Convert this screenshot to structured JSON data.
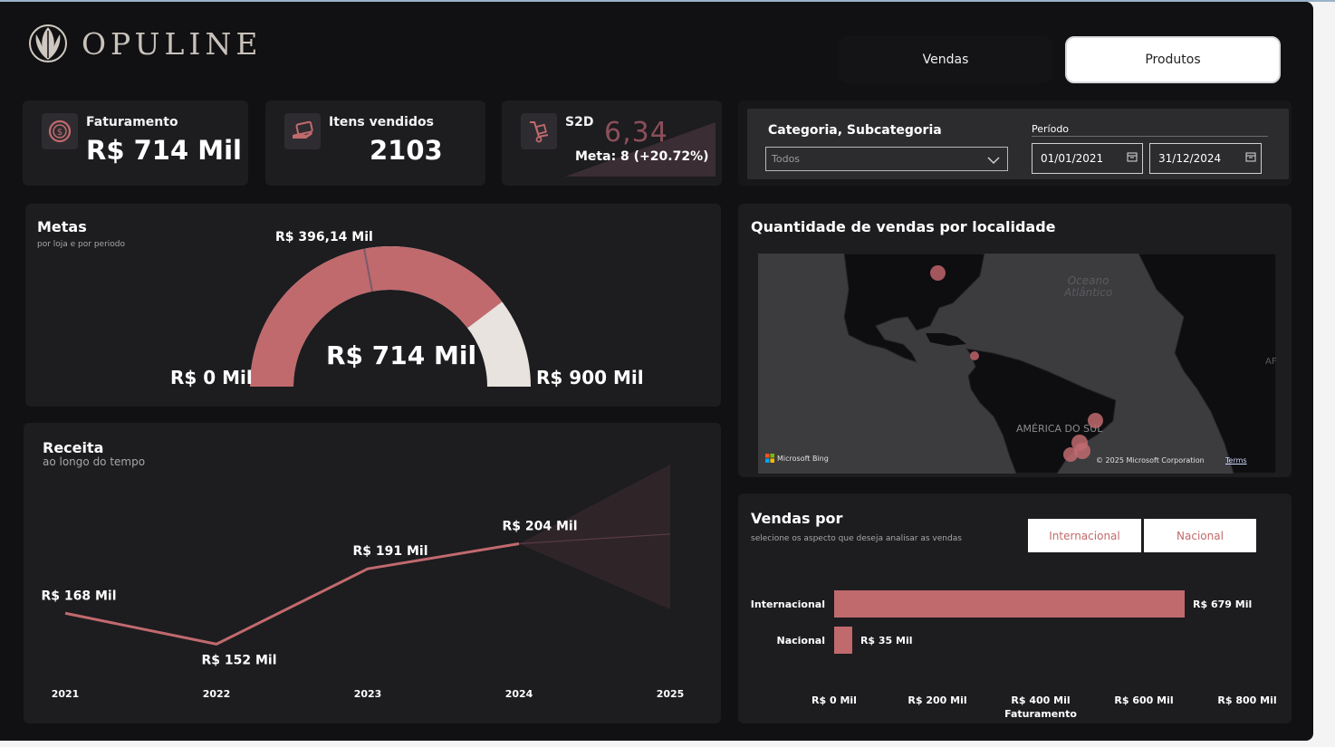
{
  "brand": {
    "name": "OPULINE"
  },
  "nav": {
    "vendas": "Vendas",
    "produtos": "Produtos"
  },
  "kpis": {
    "faturamento": {
      "label": "Faturamento",
      "value": "R$ 714 Mil",
      "icon": "dollar-coin-icon"
    },
    "itens": {
      "label": "Itens vendidos",
      "value": "2103",
      "icon": "credit-card-hand-icon"
    },
    "s2d": {
      "label": "S2D",
      "value": "6,34",
      "meta": "Meta: 8 (+20.72%)",
      "icon": "hand-truck-icon"
    }
  },
  "filters": {
    "category_label": "Categoria, Subcategoria",
    "category_value": "Todos",
    "period_label": "Período",
    "date_start": "01/01/2021",
    "date_end": "31/12/2024"
  },
  "metas": {
    "title": "Metas",
    "subtitle": "por loja e por periodo",
    "center_value": "R$ 714 Mil",
    "min_label": "R$ 0 Mil",
    "max_label": "R$ 900 Mil",
    "target_label": "R$ 396,14 Mil",
    "value": 714,
    "min": 0,
    "max": 900,
    "target": 396.14
  },
  "map": {
    "title": "Quantidade de vendas por localidade",
    "ocean_label_1": "Oceano",
    "ocean_label_2": "Atlântico",
    "continent_label": "AMÉRICA DO SUL",
    "edge_label": "AF",
    "bing": "Microsoft Bing",
    "copyright": "© 2025 Microsoft Corporation",
    "terms": "Terms"
  },
  "receita": {
    "title": "Receita",
    "subtitle": "ao longo do tempo"
  },
  "vendas_por": {
    "title": "Vendas por",
    "subtitle": "selecione os aspecto que deseja analisar as vendas",
    "seg_internacional": "Internacional",
    "seg_nacional": "Nacional",
    "xaxis_title": "Faturamento"
  },
  "colors": {
    "accent": "#c06a6e",
    "bg": "#111113",
    "card": "#1d1c1f",
    "track": "#e9e3df"
  },
  "chart_data": [
    {
      "type": "line",
      "title": "Receita",
      "subtitle": "ao longo do tempo",
      "x": [
        "2021",
        "2022",
        "2023",
        "2024",
        "2025"
      ],
      "series": [
        {
          "values": [
            168,
            152,
            191,
            204,
            null
          ]
        }
      ],
      "data_labels": [
        "R$ 168 Mil",
        "R$ 152 Mil",
        "R$ 191 Mil",
        "R$ 204 Mil"
      ],
      "forecast": {
        "x": "2025",
        "value": 209,
        "low": 170,
        "high": 245
      }
    },
    {
      "type": "bar",
      "orientation": "horizontal",
      "title": "Vendas por",
      "categories": [
        "Internacional",
        "Nacional"
      ],
      "values": [
        679,
        35
      ],
      "data_labels": [
        "R$ 679 Mil",
        "R$ 35 Mil"
      ],
      "xlabel": "Faturamento",
      "xticks": [
        "R$ 0 Mil",
        "R$ 200 Mil",
        "R$ 400 Mil",
        "R$ 600 Mil",
        "R$ 800 Mil"
      ],
      "xlim": [
        0,
        800
      ]
    }
  ]
}
